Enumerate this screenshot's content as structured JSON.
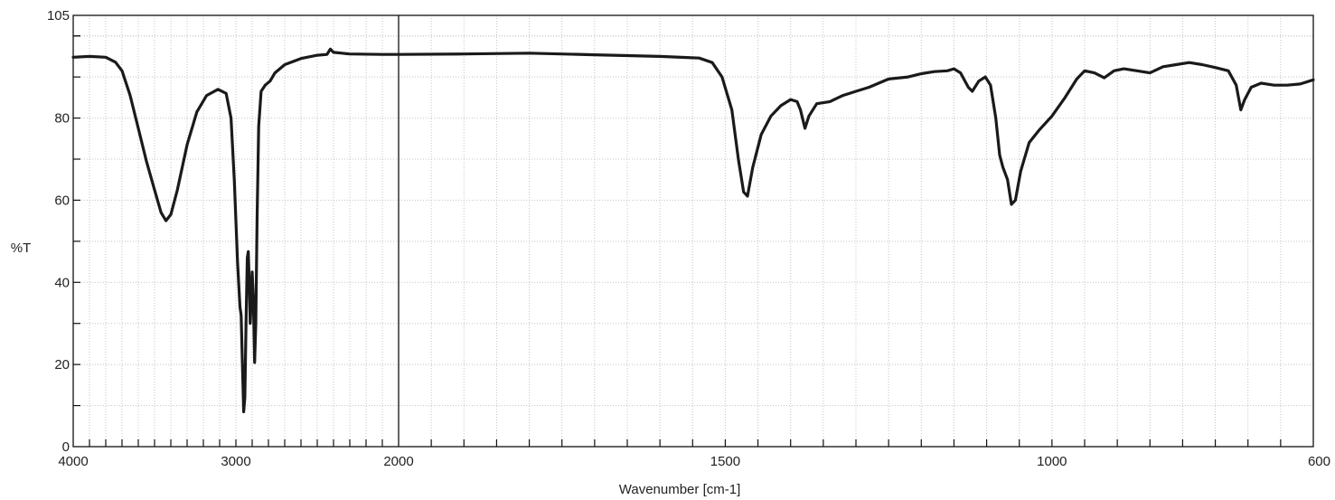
{
  "chart_data": {
    "type": "line",
    "xlabel": "Wavenumber [cm-1]",
    "ylabel": "%T",
    "xlim": [
      4000,
      600
    ],
    "ylim": [
      0,
      105
    ],
    "axis_break_at": 2000,
    "axis_segments": [
      {
        "from": 4000,
        "to": 2000
      },
      {
        "from": 2000,
        "to": 600
      }
    ],
    "x_ticks": [
      4000,
      3000,
      2000,
      1500,
      1000,
      600
    ],
    "y_ticks": [
      0,
      20,
      40,
      60,
      80,
      105
    ],
    "grid": true,
    "line_color": "#1a1a1a",
    "series": [
      {
        "values": [
          [
            4000,
            94.8
          ],
          [
            3900,
            95.0
          ],
          [
            3800,
            94.8
          ],
          [
            3740,
            93.6
          ],
          [
            3700,
            91.5
          ],
          [
            3650,
            85.5
          ],
          [
            3600,
            77.5
          ],
          [
            3550,
            69.5
          ],
          [
            3500,
            62.5
          ],
          [
            3460,
            57.0
          ],
          [
            3430,
            55.0
          ],
          [
            3400,
            56.5
          ],
          [
            3360,
            62.5
          ],
          [
            3300,
            73.5
          ],
          [
            3240,
            81.5
          ],
          [
            3180,
            85.5
          ],
          [
            3110,
            87.0
          ],
          [
            3060,
            86.0
          ],
          [
            3030,
            80.0
          ],
          [
            3010,
            65.0
          ],
          [
            2990,
            45.0
          ],
          [
            2975,
            34.0
          ],
          [
            2968,
            32.0
          ],
          [
            2960,
            20.0
          ],
          [
            2952,
            8.5
          ],
          [
            2945,
            12.0
          ],
          [
            2938,
            30.0
          ],
          [
            2930,
            46.0
          ],
          [
            2924,
            47.5
          ],
          [
            2918,
            40.0
          ],
          [
            2912,
            30.0
          ],
          [
            2906,
            35.0
          ],
          [
            2900,
            42.5
          ],
          [
            2893,
            36.0
          ],
          [
            2885,
            20.5
          ],
          [
            2878,
            30.0
          ],
          [
            2870,
            55.0
          ],
          [
            2860,
            78.0
          ],
          [
            2845,
            86.5
          ],
          [
            2820,
            88.0
          ],
          [
            2790,
            89.0
          ],
          [
            2760,
            91.0
          ],
          [
            2700,
            93.0
          ],
          [
            2600,
            94.5
          ],
          [
            2500,
            95.3
          ],
          [
            2440,
            95.5
          ],
          [
            2420,
            96.8
          ],
          [
            2400,
            96.0
          ],
          [
            2300,
            95.6
          ],
          [
            2100,
            95.5
          ],
          [
            2000,
            95.5
          ],
          [
            1900,
            95.6
          ],
          [
            1800,
            95.8
          ],
          [
            1700,
            95.4
          ],
          [
            1600,
            95.0
          ],
          [
            1540,
            94.6
          ],
          [
            1520,
            93.5
          ],
          [
            1505,
            90.0
          ],
          [
            1490,
            82.0
          ],
          [
            1480,
            70.0
          ],
          [
            1472,
            62.0
          ],
          [
            1466,
            61.0
          ],
          [
            1458,
            68.0
          ],
          [
            1445,
            76.0
          ],
          [
            1430,
            80.5
          ],
          [
            1415,
            83.0
          ],
          [
            1400,
            84.5
          ],
          [
            1390,
            84.0
          ],
          [
            1385,
            82.0
          ],
          [
            1378,
            77.5
          ],
          [
            1372,
            80.5
          ],
          [
            1360,
            83.5
          ],
          [
            1340,
            84.0
          ],
          [
            1320,
            85.5
          ],
          [
            1300,
            86.5
          ],
          [
            1280,
            87.5
          ],
          [
            1250,
            89.5
          ],
          [
            1220,
            90.0
          ],
          [
            1200,
            90.8
          ],
          [
            1180,
            91.3
          ],
          [
            1160,
            91.5
          ],
          [
            1150,
            92.0
          ],
          [
            1140,
            91.0
          ],
          [
            1128,
            87.5
          ],
          [
            1122,
            86.5
          ],
          [
            1112,
            89.0
          ],
          [
            1102,
            90.0
          ],
          [
            1094,
            88.0
          ],
          [
            1086,
            80.0
          ],
          [
            1080,
            71.0
          ],
          [
            1075,
            68.0
          ],
          [
            1068,
            65.0
          ],
          [
            1062,
            59.0
          ],
          [
            1056,
            60.0
          ],
          [
            1048,
            67.0
          ],
          [
            1035,
            74.0
          ],
          [
            1020,
            77.0
          ],
          [
            1000,
            80.5
          ],
          [
            980,
            85.0
          ],
          [
            962,
            89.5
          ],
          [
            950,
            91.5
          ],
          [
            935,
            91.0
          ],
          [
            920,
            89.8
          ],
          [
            905,
            91.5
          ],
          [
            890,
            92.0
          ],
          [
            870,
            91.5
          ],
          [
            850,
            91.0
          ],
          [
            830,
            92.5
          ],
          [
            810,
            93.0
          ],
          [
            790,
            93.5
          ],
          [
            770,
            93.0
          ],
          [
            750,
            92.3
          ],
          [
            730,
            91.5
          ],
          [
            718,
            88.0
          ],
          [
            711,
            82.0
          ],
          [
            705,
            84.5
          ],
          [
            695,
            87.5
          ],
          [
            680,
            88.5
          ],
          [
            660,
            88.0
          ],
          [
            640,
            88.0
          ],
          [
            620,
            88.3
          ],
          [
            600,
            89.3
          ]
        ]
      }
    ]
  }
}
